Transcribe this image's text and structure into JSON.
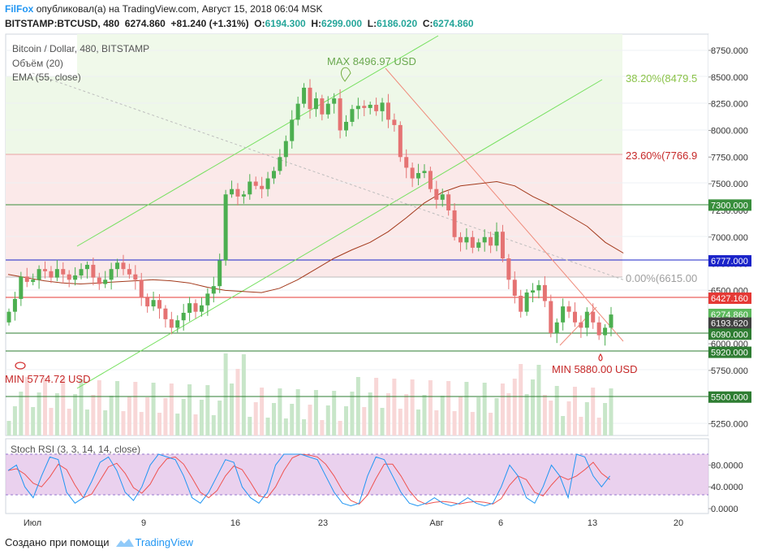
{
  "header": {
    "brand": "FilFox",
    "published": "опубликовал(а) на TradingView.com, Август 15, 2018 06:04 MSK",
    "symbol": "BITSTAMP:BTCUSD, 480",
    "last": "6274.860",
    "change": "+81.240 (+1.31%)",
    "o_label": "O:",
    "o": "6194.300",
    "h_label": "H:",
    "h": "6299.000",
    "l_label": "L:",
    "l": "6186.020",
    "c_label": "C:",
    "c": "6274.860"
  },
  "legend": {
    "main": "Bitcoin / Dollar, 480, BITSTAMP",
    "volume": "Объём (20)",
    "ema": "EMA (55, close)",
    "stoch": "Stoch RSI (3, 3, 14, 14, close)"
  },
  "annotations": {
    "max": "MAX 8496.97 USD",
    "min1": "MIN 5774.72 USD",
    "min2": "MIN 5880.00 USD",
    "fib_382": "38.20%(8479.5",
    "fib_236": "23.60%(7766.9",
    "fib_0": "0.00%(6615.00"
  },
  "price_axis": {
    "ticks": [
      "8750.000",
      "8500.000",
      "8250.000",
      "8000.000",
      "7750.000",
      "7500.000",
      "7250.000",
      "7000.000",
      "6750.000",
      "6500.000",
      "6250.000",
      "6000.000",
      "5750.000",
      "5500.000",
      "5250.000"
    ],
    "tick_values": [
      8750,
      8500,
      8250,
      8000,
      7750,
      7500,
      7250,
      7000,
      6750,
      6500,
      6250,
      6000,
      5750,
      5500,
      5250
    ],
    "badges": [
      {
        "label": "7300.000",
        "value": 7300,
        "color": "#388e3c"
      },
      {
        "label": "6777.000",
        "value": 6777,
        "color": "#1a23c9"
      },
      {
        "label": "6427.160",
        "value": 6427.16,
        "color": "#e53935"
      },
      {
        "label": "6274.860",
        "value": 6274.86,
        "color": "#5cb85c"
      },
      {
        "label": "6193.620",
        "value": 6193.62,
        "color": "#424242"
      },
      {
        "label": "6090.000",
        "value": 6090,
        "color": "#2e7d32"
      },
      {
        "label": "5920.000",
        "value": 5920,
        "color": "#2e7d32"
      },
      {
        "label": "5500.000",
        "value": 5500,
        "color": "#2e7d32"
      }
    ]
  },
  "stoch_axis": {
    "ticks": [
      "80.0000",
      "40.0000",
      "0.0000"
    ],
    "tick_values": [
      80,
      40,
      0
    ]
  },
  "time_axis": {
    "labels": [
      "Июл",
      "9",
      "16",
      "23",
      "Авг",
      "6",
      "13",
      "20"
    ]
  },
  "colors": {
    "up": "#4caf50",
    "down": "#e57373",
    "ema": "#a33a1c",
    "channel": "#76e05f",
    "stoch_k": "#2196f3",
    "stoch_d": "#ef5350",
    "stoch_band": "#e1bee7"
  },
  "footer": {
    "created": "Создано при помощи",
    "tv": "TradingView"
  }
}
